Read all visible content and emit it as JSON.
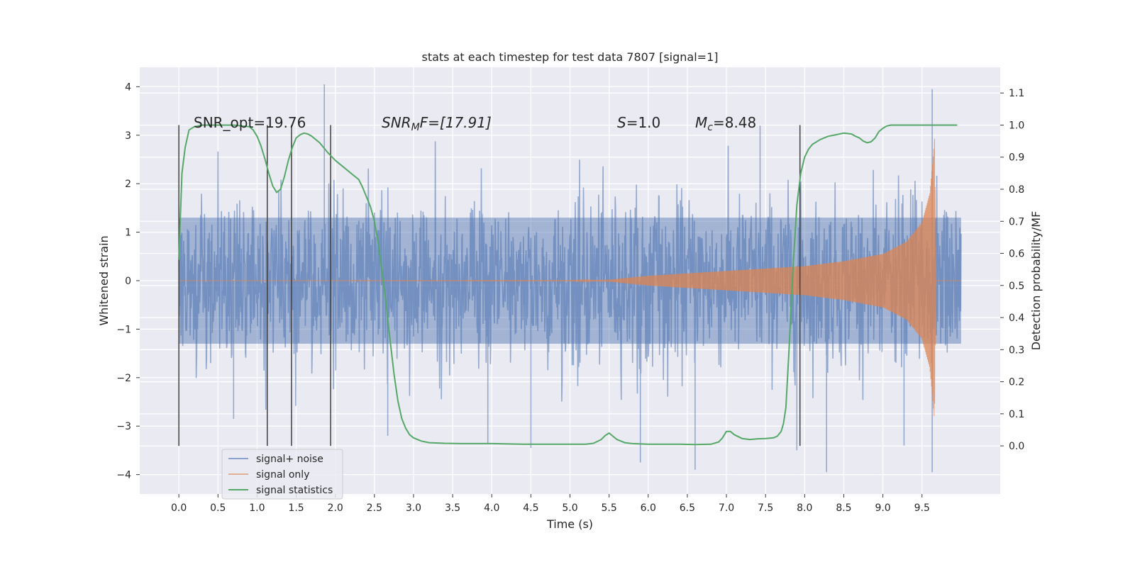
{
  "chart_data": {
    "type": "line",
    "title": "stats at each timestep for test data 7807 [signal=1]",
    "xlabel": "Time (s)",
    "ylabel": "Whitened strain",
    "y2label": "Detection probability/MF",
    "xlim": [
      -0.5,
      10.5
    ],
    "ylim": [
      -4.4,
      4.4
    ],
    "y2lim": [
      -0.15,
      1.18
    ],
    "x_ticks": [
      0.0,
      0.5,
      1.0,
      1.5,
      2.0,
      2.5,
      3.0,
      3.5,
      4.0,
      4.5,
      5.0,
      5.5,
      6.0,
      6.5,
      7.0,
      7.5,
      8.0,
      8.5,
      9.0,
      9.5
    ],
    "x_tick_labels": [
      "0.0",
      "0.5",
      "1.0",
      "1.5",
      "2.0",
      "2.5",
      "3.0",
      "3.5",
      "4.0",
      "4.5",
      "5.0",
      "5.5",
      "6.0",
      "6.5",
      "7.0",
      "7.5",
      "8.0",
      "8.5",
      "9.0",
      "9.5"
    ],
    "y_ticks": [
      4,
      3,
      2,
      1,
      0,
      -1,
      -2,
      -3,
      -4
    ],
    "y_tick_labels": [
      "4",
      "3",
      "2",
      "1",
      "0",
      "−1",
      "−2",
      "−3",
      "−4"
    ],
    "y2_ticks": [
      1.1,
      1.0,
      0.9,
      0.8,
      0.7,
      0.6,
      0.5,
      0.4,
      0.3,
      0.2,
      0.1,
      0.0
    ],
    "y2_tick_labels": [
      "1.1",
      "1.0",
      "0.9",
      "0.8",
      "0.7",
      "0.6",
      "0.5",
      "0.4",
      "0.3",
      "0.2",
      "0.1",
      "0.0"
    ],
    "grid": true,
    "legend_position": "lower-left",
    "annotations": {
      "snr_opt": "SNR_opt=19.76",
      "snr_mf_label": "SNR",
      "snr_mf_sub": "M",
      "snr_mf_tail": "F=[17.91]",
      "s_label": "S",
      "s_value": "=1.0",
      "mc_label": "M",
      "mc_sub": "c",
      "mc_value": "=8.48"
    },
    "vertical_lines_x": [
      0.0,
      1.13,
      1.44,
      1.94,
      7.94
    ],
    "vertical_lines_y2_range": [
      0.0,
      1.0
    ],
    "series": [
      {
        "name": "signal+ noise",
        "color": "#4c72b0",
        "kind": "noise",
        "x_range": [
          0.0,
          10.0
        ],
        "typical_band": [
          -1.3,
          1.3
        ],
        "peak_band": [
          -2.7,
          2.9
        ],
        "outliers": [
          [
            1.86,
            4.05
          ],
          [
            9.63,
            3.95
          ],
          [
            9.63,
            -3.95
          ],
          [
            6.6,
            -3.9
          ],
          [
            8.28,
            -3.95
          ],
          [
            5.9,
            -3.75
          ],
          [
            3.95,
            -3.35
          ],
          [
            4.5,
            -3.45
          ],
          [
            2.67,
            -3.2
          ],
          [
            7.43,
            3.2
          ],
          [
            7.9,
            -3.5
          ],
          [
            0.7,
            -2.85
          ],
          [
            9.27,
            -3.4
          ]
        ]
      },
      {
        "name": "signal only",
        "color": "#dd8452",
        "kind": "chirp",
        "x_range": [
          0.0,
          10.0
        ],
        "amplitude_points": [
          [
            0.0,
            0.0
          ],
          [
            5.0,
            0.005
          ],
          [
            5.5,
            0.02
          ],
          [
            6.0,
            0.1
          ],
          [
            6.5,
            0.15
          ],
          [
            7.0,
            0.2
          ],
          [
            7.5,
            0.25
          ],
          [
            8.0,
            0.3
          ],
          [
            8.5,
            0.4
          ],
          [
            9.0,
            0.55
          ],
          [
            9.3,
            0.8
          ],
          [
            9.5,
            1.2
          ],
          [
            9.6,
            1.8
          ],
          [
            9.66,
            2.9
          ],
          [
            9.68,
            0.0
          ],
          [
            10.0,
            0.0
          ]
        ],
        "merger_x": 9.66,
        "merger_peak": 2.93,
        "merger_trough": -2.38
      },
      {
        "name": "signal statistics",
        "color": "#55a868",
        "axis": "right",
        "x": [
          0.0,
          0.04,
          0.08,
          0.13,
          0.2,
          0.3,
          0.5,
          0.7,
          0.9,
          0.95,
          1.0,
          1.05,
          1.1,
          1.15,
          1.2,
          1.25,
          1.3,
          1.35,
          1.4,
          1.45,
          1.5,
          1.55,
          1.6,
          1.65,
          1.7,
          1.8,
          1.9,
          2.0,
          2.1,
          2.2,
          2.3,
          2.35,
          2.4,
          2.45,
          2.5,
          2.55,
          2.6,
          2.65,
          2.7,
          2.75,
          2.8,
          2.85,
          2.9,
          2.95,
          3.0,
          3.1,
          3.2,
          3.4,
          3.6,
          4.0,
          4.4,
          4.8,
          5.0,
          5.2,
          5.3,
          5.4,
          5.45,
          5.5,
          5.55,
          5.6,
          5.7,
          5.8,
          6.0,
          6.2,
          6.4,
          6.6,
          6.8,
          6.9,
          6.95,
          7.0,
          7.05,
          7.1,
          7.2,
          7.3,
          7.4,
          7.5,
          7.6,
          7.65,
          7.7,
          7.73,
          7.76,
          7.8,
          7.85,
          7.9,
          7.95,
          8.0,
          8.05,
          8.1,
          8.2,
          8.3,
          8.4,
          8.5,
          8.6,
          8.65,
          8.7,
          8.75,
          8.8,
          8.85,
          8.9,
          8.95,
          9.0,
          9.05,
          9.1,
          9.2,
          9.4,
          9.6,
          9.8,
          9.95
        ],
        "values": [
          0.58,
          0.85,
          0.93,
          0.985,
          0.995,
          1.0,
          1.0,
          1.0,
          0.995,
          0.985,
          0.965,
          0.935,
          0.895,
          0.85,
          0.81,
          0.79,
          0.8,
          0.84,
          0.89,
          0.93,
          0.96,
          0.97,
          0.975,
          0.972,
          0.965,
          0.945,
          0.915,
          0.89,
          0.87,
          0.85,
          0.83,
          0.805,
          0.775,
          0.745,
          0.7,
          0.63,
          0.54,
          0.44,
          0.33,
          0.225,
          0.14,
          0.085,
          0.055,
          0.035,
          0.025,
          0.015,
          0.01,
          0.008,
          0.007,
          0.007,
          0.005,
          0.005,
          0.005,
          0.005,
          0.008,
          0.02,
          0.032,
          0.04,
          0.03,
          0.02,
          0.01,
          0.007,
          0.005,
          0.005,
          0.005,
          0.004,
          0.005,
          0.012,
          0.025,
          0.045,
          0.045,
          0.035,
          0.023,
          0.02,
          0.022,
          0.023,
          0.025,
          0.03,
          0.045,
          0.07,
          0.12,
          0.3,
          0.55,
          0.75,
          0.85,
          0.9,
          0.925,
          0.94,
          0.955,
          0.965,
          0.97,
          0.975,
          0.972,
          0.965,
          0.96,
          0.95,
          0.945,
          0.948,
          0.96,
          0.98,
          0.99,
          0.997,
          1.0,
          1.0,
          1.0,
          1.0,
          1.0,
          1.0
        ]
      }
    ]
  }
}
